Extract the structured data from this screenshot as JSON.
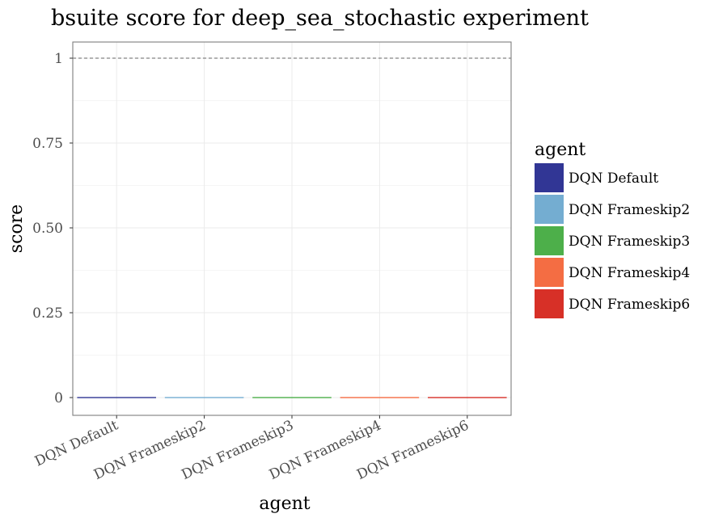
{
  "chart_data": {
    "type": "bar",
    "title": "bsuite score for deep_sea_stochastic experiment",
    "xlabel": "agent",
    "ylabel": "score",
    "categories": [
      "DQN Default",
      "DQN Frameskip2",
      "DQN Frameskip3",
      "DQN Frameskip4",
      "DQN Frameskip6"
    ],
    "values": [
      0,
      0,
      0,
      0,
      0
    ],
    "colors": [
      "#313695",
      "#74add1",
      "#4daf4a",
      "#f46d43",
      "#d73027"
    ],
    "ylim": [
      0,
      1
    ],
    "yticks": [
      0,
      0.25,
      0.5,
      0.75,
      1
    ],
    "ytick_labels": [
      "0",
      "0.25",
      "0.50",
      "0.75",
      "1"
    ],
    "reference_line": 1,
    "grid": true,
    "legend": {
      "title": "agent",
      "position": "right",
      "entries": [
        "DQN Default",
        "DQN Frameskip2",
        "DQN Frameskip3",
        "DQN Frameskip4",
        "DQN Frameskip6"
      ]
    }
  }
}
